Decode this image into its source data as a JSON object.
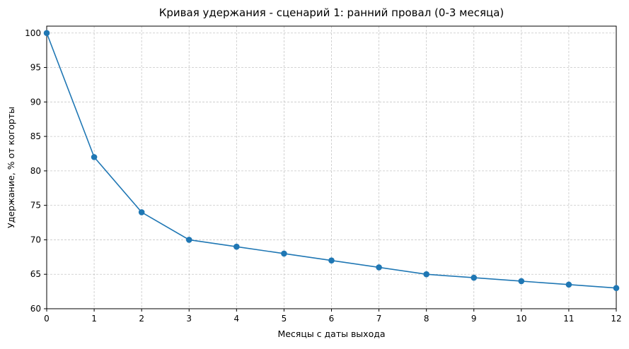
{
  "chart_data": {
    "type": "line",
    "title": "Кривая удержания - сценарий 1: ранний провал (0-3 месяца)",
    "xlabel": "Месяцы с даты выхода",
    "ylabel": "Удержание, % от когорты",
    "x": [
      0,
      1,
      2,
      3,
      4,
      5,
      6,
      7,
      8,
      9,
      10,
      11,
      12
    ],
    "series": [
      {
        "values": [
          100,
          82,
          74,
          70,
          69,
          68,
          67,
          66,
          65,
          64.5,
          64,
          63.5,
          63
        ]
      }
    ],
    "xlim": [
      0,
      12
    ],
    "ylim": [
      60,
      101
    ],
    "xticks": [
      0,
      1,
      2,
      3,
      4,
      5,
      6,
      7,
      8,
      9,
      10,
      11,
      12
    ],
    "yticks": [
      60,
      65,
      70,
      75,
      80,
      85,
      90,
      95,
      100
    ],
    "grid": true,
    "grid_style": "dashed",
    "line_color": "#1f77b4",
    "marker": "circle",
    "legend": false
  }
}
